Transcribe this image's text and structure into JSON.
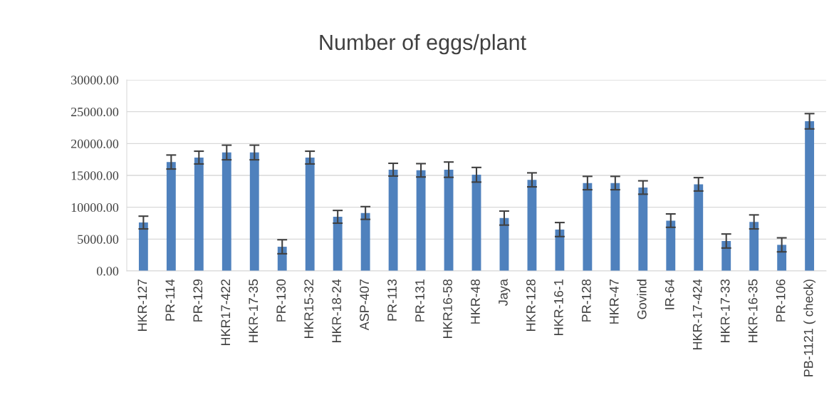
{
  "chart_data": {
    "type": "bar",
    "title": "Number of eggs/plant",
    "categories": [
      "HKR-127",
      "PR-114",
      "PR-129",
      "HKR17-422",
      "HKR-17-35",
      "PR-130",
      "HKR15-32",
      "HKR-18-24",
      "ASP-407",
      "PR-113",
      "PR-131",
      "HKR16-58",
      "HKR-48",
      "Jaya",
      "HKR-128",
      "HKR-16-1",
      "PR-128",
      "HKR-47",
      "Govind",
      "IR-64",
      "HKR-17-424",
      "HKR-17-33",
      "HKR-16-35",
      "PR-106",
      "PB-1121 ( check)"
    ],
    "values": [
      7600,
      17100,
      17800,
      18600,
      18600,
      3800,
      17800,
      8500,
      9100,
      15900,
      15800,
      15900,
      15100,
      8300,
      14300,
      6500,
      13800,
      13800,
      13100,
      7900,
      13600,
      4700,
      7700,
      4100,
      23500
    ],
    "errors": [
      1000,
      1100,
      1000,
      1150,
      1150,
      1100,
      1000,
      1000,
      1000,
      1000,
      1050,
      1200,
      1150,
      1100,
      1100,
      1100,
      1050,
      1050,
      1050,
      1050,
      1050,
      1100,
      1100,
      1100,
      1200
    ],
    "color": "#4f81bd",
    "ylim": [
      0,
      30000
    ],
    "yticks": [
      {
        "value": 0,
        "label": "0.00"
      },
      {
        "value": 5000,
        "label": "5000.00"
      },
      {
        "value": 10000,
        "label": "10000.00"
      },
      {
        "value": 15000,
        "label": "15000.00"
      },
      {
        "value": 20000,
        "label": "20000.00"
      },
      {
        "value": 25000,
        "label": "25000.00"
      },
      {
        "value": 30000,
        "label": "30000.00"
      }
    ],
    "grid": "y"
  }
}
